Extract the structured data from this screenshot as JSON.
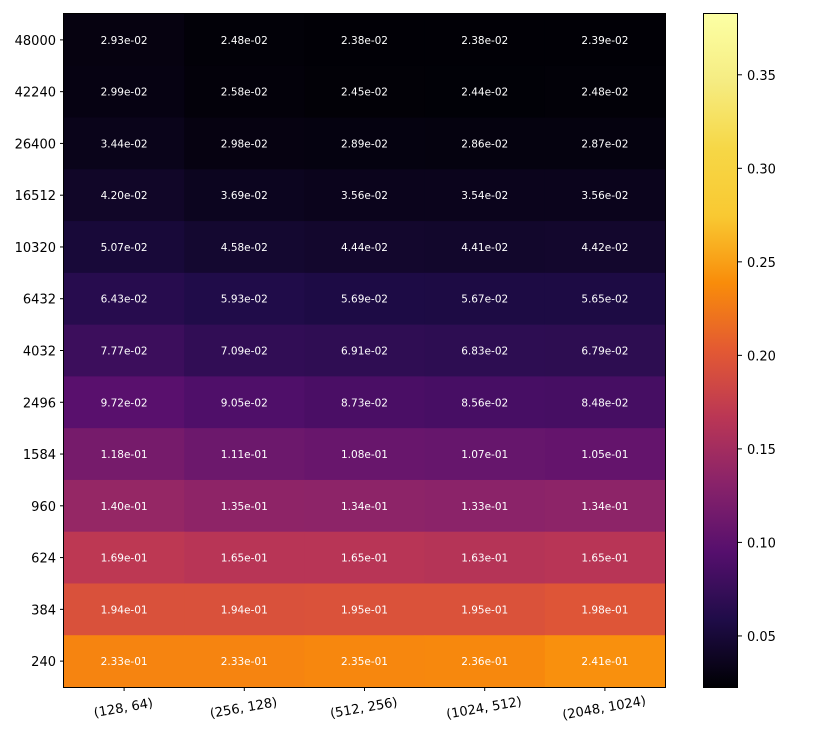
{
  "chart_data": {
    "type": "heatmap",
    "title": "",
    "xlabel": "",
    "ylabel": "",
    "x_categories": [
      "(128, 64)",
      "(256, 128)",
      "(512, 256)",
      "(1024, 512)",
      "(2048, 1024)"
    ],
    "y_categories": [
      "48000",
      "42240",
      "26400",
      "16512",
      "10320",
      "6432",
      "4032",
      "2496",
      "1584",
      "960",
      "624",
      "384",
      "240"
    ],
    "values": [
      [
        0.0293,
        0.0248,
        0.0238,
        0.0238,
        0.0239
      ],
      [
        0.0299,
        0.0258,
        0.0245,
        0.0244,
        0.0248
      ],
      [
        0.0344,
        0.0298,
        0.0289,
        0.0286,
        0.0287
      ],
      [
        0.042,
        0.0369,
        0.0356,
        0.0354,
        0.0356
      ],
      [
        0.0507,
        0.0458,
        0.0444,
        0.0441,
        0.0442
      ],
      [
        0.0643,
        0.0593,
        0.0569,
        0.0567,
        0.0565
      ],
      [
        0.0777,
        0.0709,
        0.0691,
        0.0683,
        0.0679
      ],
      [
        0.0972,
        0.0905,
        0.0873,
        0.0856,
        0.0848
      ],
      [
        0.118,
        0.111,
        0.108,
        0.107,
        0.105
      ],
      [
        0.14,
        0.135,
        0.134,
        0.133,
        0.134
      ],
      [
        0.169,
        0.165,
        0.165,
        0.163,
        0.165
      ],
      [
        0.194,
        0.194,
        0.195,
        0.195,
        0.198
      ],
      [
        0.233,
        0.233,
        0.235,
        0.236,
        0.241
      ]
    ],
    "value_labels": [
      [
        "2.93e-02",
        "2.48e-02",
        "2.38e-02",
        "2.38e-02",
        "2.39e-02"
      ],
      [
        "2.99e-02",
        "2.58e-02",
        "2.45e-02",
        "2.44e-02",
        "2.48e-02"
      ],
      [
        "3.44e-02",
        "2.98e-02",
        "2.89e-02",
        "2.86e-02",
        "2.87e-02"
      ],
      [
        "4.20e-02",
        "3.69e-02",
        "3.56e-02",
        "3.54e-02",
        "3.56e-02"
      ],
      [
        "5.07e-02",
        "4.58e-02",
        "4.44e-02",
        "4.41e-02",
        "4.42e-02"
      ],
      [
        "6.43e-02",
        "5.93e-02",
        "5.69e-02",
        "5.67e-02",
        "5.65e-02"
      ],
      [
        "7.77e-02",
        "7.09e-02",
        "6.91e-02",
        "6.83e-02",
        "6.79e-02"
      ],
      [
        "9.72e-02",
        "9.05e-02",
        "8.73e-02",
        "8.56e-02",
        "8.48e-02"
      ],
      [
        "1.18e-01",
        "1.11e-01",
        "1.08e-01",
        "1.07e-01",
        "1.05e-01"
      ],
      [
        "1.40e-01",
        "1.35e-01",
        "1.34e-01",
        "1.33e-01",
        "1.34e-01"
      ],
      [
        "1.69e-01",
        "1.65e-01",
        "1.65e-01",
        "1.63e-01",
        "1.65e-01"
      ],
      [
        "1.94e-01",
        "1.94e-01",
        "1.95e-01",
        "1.95e-01",
        "1.98e-01"
      ],
      [
        "2.33e-01",
        "2.33e-01",
        "2.35e-01",
        "2.36e-01",
        "2.41e-01"
      ]
    ],
    "colormap": "inferno",
    "colorbar": {
      "range": [
        0.0227,
        0.3825
      ],
      "ticks": [
        0.05,
        0.1,
        0.15,
        0.2,
        0.25,
        0.3,
        0.35
      ],
      "tick_labels": [
        "0.05",
        "0.10",
        "0.15",
        "0.20",
        "0.25",
        "0.30",
        "0.35"
      ]
    },
    "x_tick_rotation_deg": 10,
    "annotation_color": "#ffffff",
    "grid": false,
    "legend": "colorbar-right"
  }
}
